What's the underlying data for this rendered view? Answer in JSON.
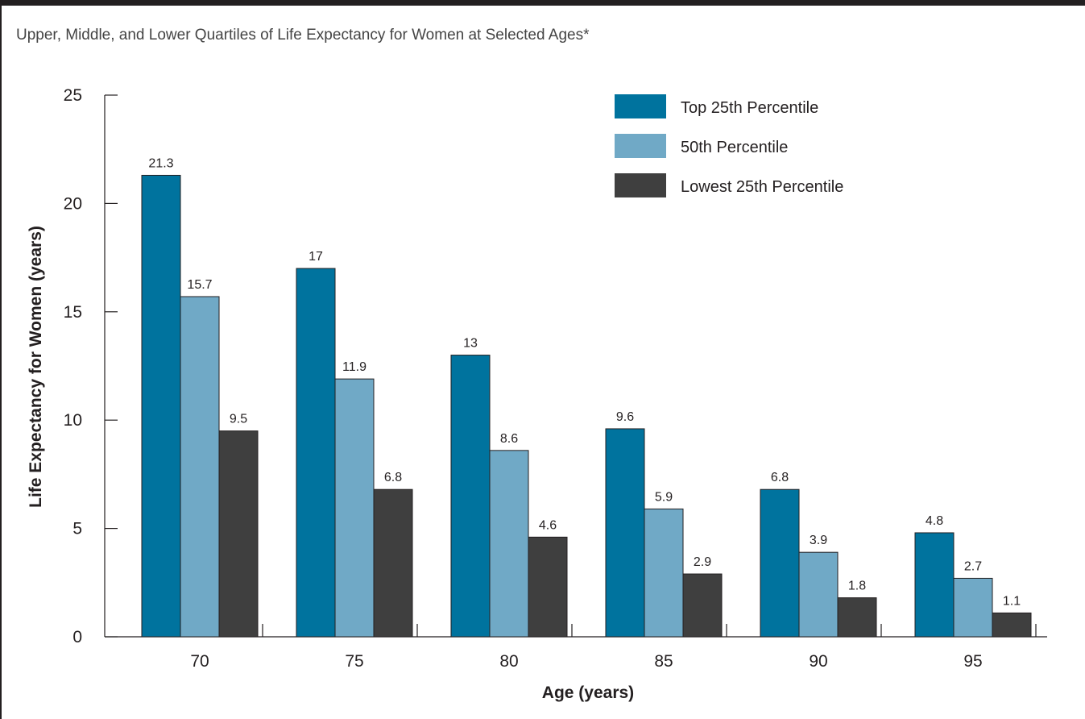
{
  "chart_data": {
    "type": "bar",
    "title": "Upper, Middle, and Lower Quartiles of Life Expectancy for Women at Selected Ages*",
    "xlabel": "Age (years)",
    "ylabel": "Life Expectancy for Women (years)",
    "ylim": [
      0,
      25
    ],
    "yticks": [
      "0",
      "5",
      "10",
      "15",
      "20",
      "25"
    ],
    "categories": [
      "70",
      "75",
      "80",
      "85",
      "90",
      "95"
    ],
    "series": [
      {
        "name": "Top 25th Percentile",
        "color": "#00739e",
        "values": [
          21.3,
          17,
          13,
          9.6,
          6.8,
          4.8
        ],
        "labels": [
          "21.3",
          "17",
          "13",
          "9.6",
          "6.8",
          "4.8"
        ]
      },
      {
        "name": "50th Percentile",
        "color": "#70a9c6",
        "values": [
          15.7,
          11.9,
          8.6,
          5.9,
          3.9,
          2.7
        ],
        "labels": [
          "15.7",
          "11.9",
          "8.6",
          "5.9",
          "3.9",
          "2.7"
        ]
      },
      {
        "name": "Lowest 25th Percentile",
        "color": "#3f3f3f",
        "values": [
          9.5,
          6.8,
          4.6,
          2.9,
          1.8,
          1.1
        ],
        "labels": [
          "9.5",
          "6.8",
          "4.6",
          "2.9",
          "1.8",
          "1.1"
        ]
      }
    ],
    "legend_position": "top-right",
    "grid": false
  }
}
